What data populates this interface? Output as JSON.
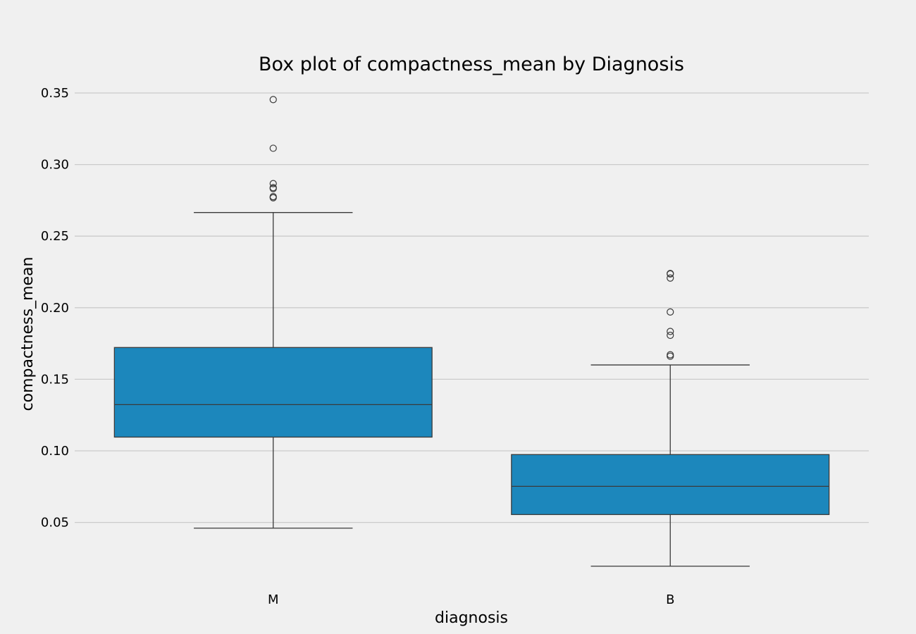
{
  "chart_data": {
    "type": "box",
    "title": "Box plot of compactness_mean by Diagnosis",
    "xlabel": "diagnosis",
    "ylabel": "compactness_mean",
    "ylim": [
      0.015,
      0.36
    ],
    "yticks": [
      0.05,
      0.1,
      0.15,
      0.2,
      0.25,
      0.3,
      0.35
    ],
    "ytick_labels": [
      "0.05",
      "0.10",
      "0.15",
      "0.20",
      "0.25",
      "0.30",
      "0.35"
    ],
    "grid": "horizontal",
    "box_color": "#1c87bc",
    "categories": [
      "M",
      "B"
    ],
    "boxes": [
      {
        "category": "M",
        "q1": 0.1096,
        "median": 0.1323,
        "q3": 0.1722,
        "whisker_low": 0.046,
        "whisker_high": 0.2665,
        "outliers": [
          0.2776,
          0.2768,
          0.2832,
          0.2839,
          0.2867,
          0.3114,
          0.3454
        ]
      },
      {
        "category": "B",
        "q1": 0.0555,
        "median": 0.0752,
        "q3": 0.0974,
        "whisker_low": 0.0194,
        "whisker_high": 0.16,
        "outliers": [
          0.1661,
          0.1671,
          0.1807,
          0.1834,
          0.197,
          0.2207,
          0.2239,
          0.2236
        ]
      }
    ]
  }
}
